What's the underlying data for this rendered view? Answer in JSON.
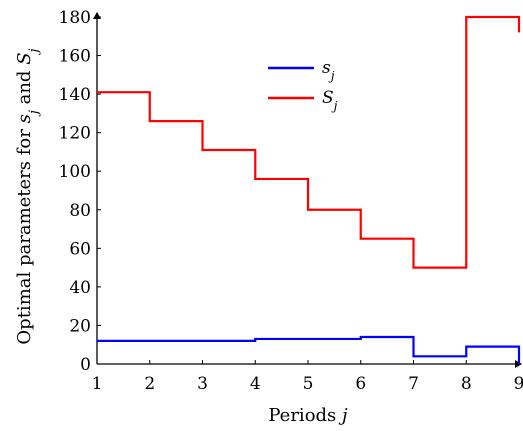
{
  "chart_data": {
    "type": "line",
    "step": "post",
    "xlabel": "Periods j",
    "ylabel": "Optimal parameters for s_j and S_j",
    "xlim": [
      1,
      9
    ],
    "ylim": [
      0,
      180
    ],
    "xticks": [
      1,
      2,
      3,
      4,
      5,
      6,
      7,
      8,
      9
    ],
    "yticks": [
      0,
      20,
      40,
      60,
      80,
      100,
      120,
      140,
      160,
      180
    ],
    "grid": false,
    "legend_position": "top-center",
    "x": [
      1,
      2,
      3,
      4,
      5,
      6,
      7,
      8,
      9
    ],
    "series": [
      {
        "name": "s_j",
        "color": "#0000ff",
        "values": [
          12,
          12,
          12,
          13,
          13,
          14,
          4,
          9,
          0
        ]
      },
      {
        "name": "S_j",
        "color": "#ff0000",
        "values": [
          141,
          126,
          111,
          96,
          80,
          65,
          50,
          180,
          172
        ]
      }
    ]
  }
}
